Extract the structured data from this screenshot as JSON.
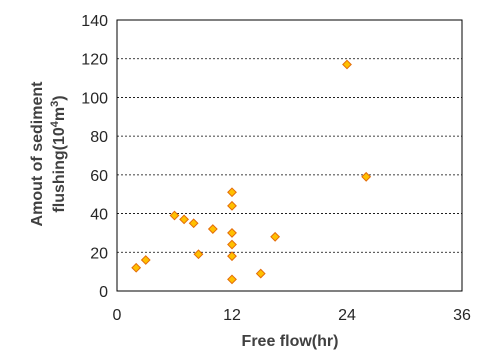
{
  "chart_data": {
    "type": "scatter",
    "title": "",
    "xlabel": "Free flow(hr)",
    "ylabel": {
      "line1": "Amout of sediment",
      "line2_prefix": "flushing(10",
      "line2_sup1": "4",
      "line2_mid": "m",
      "line2_sup2": "3",
      "line2_suffix": ")"
    },
    "xlim": [
      0,
      36
    ],
    "ylim": [
      0,
      140
    ],
    "x_ticks": [
      0,
      12,
      24,
      36
    ],
    "y_ticks": [
      0,
      20,
      40,
      60,
      80,
      100,
      120,
      140
    ],
    "x_tick_labels": [
      "0",
      "12",
      "24",
      "36"
    ],
    "y_tick_labels": [
      "0",
      "20",
      "40",
      "60",
      "80",
      "100",
      "120",
      "140"
    ],
    "grid": "horizontal dashed",
    "legend": "none",
    "marker": "diamond",
    "marker_fill": "#FFC000",
    "marker_edge": "#E36C09",
    "points": [
      {
        "x": 2,
        "y": 12
      },
      {
        "x": 3,
        "y": 16
      },
      {
        "x": 6,
        "y": 39
      },
      {
        "x": 7,
        "y": 37
      },
      {
        "x": 8,
        "y": 35
      },
      {
        "x": 8.5,
        "y": 19
      },
      {
        "x": 10,
        "y": 32
      },
      {
        "x": 12,
        "y": 51
      },
      {
        "x": 12,
        "y": 44
      },
      {
        "x": 12,
        "y": 30
      },
      {
        "x": 12,
        "y": 24
      },
      {
        "x": 12,
        "y": 18
      },
      {
        "x": 12,
        "y": 6
      },
      {
        "x": 15,
        "y": 9
      },
      {
        "x": 16.5,
        "y": 28
      },
      {
        "x": 24,
        "y": 117
      },
      {
        "x": 26,
        "y": 59
      }
    ]
  }
}
